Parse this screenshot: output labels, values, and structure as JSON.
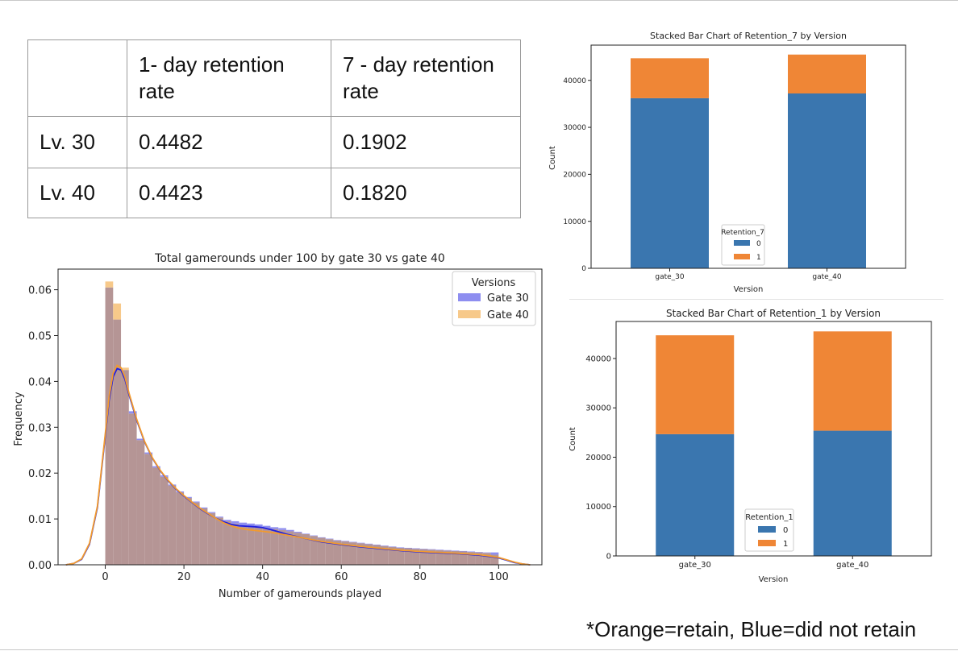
{
  "table": {
    "header": [
      "",
      "1- day retention rate",
      "7 - day retention rate"
    ],
    "rows": [
      [
        "Lv. 30",
        "0.4482",
        "0.1902"
      ],
      [
        "Lv. 40",
        "0.4423",
        "0.1820"
      ]
    ]
  },
  "note": "*Orange=retain, Blue=did not retain",
  "colors": {
    "blue_bar": "#3a76af",
    "orange_bar": "#ef8636",
    "hist_blue": "#8e8ef0",
    "hist_orange": "#f7c98a",
    "hist_overlap": "#b59595",
    "kde_blue": "#1f1fe0",
    "kde_orange": "#f29a2e"
  },
  "chart_data": [
    {
      "type": "histogram",
      "title": "Total gamerounds under 100 by gate 30 vs gate 40",
      "xlabel": "Number of gamerounds played",
      "ylabel": "Frequency",
      "xlim": [
        -12,
        111
      ],
      "ylim": [
        0,
        0.0645
      ],
      "xticks": [
        0,
        20,
        40,
        60,
        80,
        100
      ],
      "yticks": [
        0.0,
        0.01,
        0.02,
        0.03,
        0.04,
        0.05,
        0.06
      ],
      "legend": {
        "title": "Versions",
        "position": "top-right",
        "entries": [
          "Gate 30",
          "Gate 40"
        ]
      },
      "bin_edges": [
        0,
        2,
        4,
        6,
        8,
        10,
        12,
        14,
        16,
        18,
        20,
        22,
        24,
        26,
        28,
        30,
        32,
        34,
        36,
        38,
        40,
        42,
        44,
        46,
        48,
        50,
        52,
        54,
        56,
        58,
        60,
        62,
        64,
        66,
        68,
        70,
        72,
        74,
        76,
        78,
        80,
        82,
        84,
        86,
        88,
        90,
        92,
        94,
        96,
        98,
        100
      ],
      "series": [
        {
          "name": "Gate 30",
          "values": [
            0.0605,
            0.0535,
            0.0425,
            0.0335,
            0.0275,
            0.0245,
            0.0215,
            0.0195,
            0.0175,
            0.016,
            0.0148,
            0.0138,
            0.0125,
            0.0115,
            0.0105,
            0.0098,
            0.0095,
            0.0092,
            0.009,
            0.0088,
            0.0085,
            0.0082,
            0.008,
            0.0076,
            0.0072,
            0.0068,
            0.0064,
            0.006,
            0.0057,
            0.0054,
            0.0052,
            0.005,
            0.0048,
            0.0046,
            0.0044,
            0.0042,
            0.004,
            0.0038,
            0.0037,
            0.0036,
            0.0035,
            0.0034,
            0.0033,
            0.0032,
            0.0031,
            0.003,
            0.0029,
            0.0028,
            0.0027,
            0.0027
          ]
        },
        {
          "name": "Gate 40",
          "values": [
            0.0618,
            0.057,
            0.043,
            0.033,
            0.0272,
            0.0242,
            0.0212,
            0.0192,
            0.0173,
            0.0158,
            0.0146,
            0.0136,
            0.0123,
            0.0113,
            0.0103,
            0.0095,
            0.009,
            0.0086,
            0.0084,
            0.0082,
            0.008,
            0.0078,
            0.0076,
            0.0073,
            0.007,
            0.0067,
            0.0063,
            0.0059,
            0.0056,
            0.0053,
            0.0051,
            0.0049,
            0.0047,
            0.0045,
            0.0043,
            0.0041,
            0.0039,
            0.0037,
            0.0036,
            0.0035,
            0.0034,
            0.0033,
            0.0032,
            0.0031,
            0.003,
            0.0029,
            0.0028,
            0.0027,
            0.0026,
            0.0022
          ]
        }
      ],
      "kde": {
        "x": [
          -10,
          -8,
          -6,
          -4,
          -2,
          0,
          1,
          2,
          3,
          4,
          5,
          6,
          8,
          10,
          12,
          14,
          16,
          18,
          20,
          22,
          24,
          26,
          28,
          30,
          32,
          34,
          36,
          38,
          40,
          42,
          44,
          46,
          48,
          50,
          55,
          60,
          65,
          70,
          75,
          80,
          85,
          90,
          95,
          98,
          100,
          102,
          104,
          106,
          108
        ],
        "gate30": [
          0,
          0.0003,
          0.0012,
          0.0045,
          0.0125,
          0.028,
          0.036,
          0.041,
          0.0428,
          0.0425,
          0.0405,
          0.0372,
          0.0315,
          0.0268,
          0.0232,
          0.0205,
          0.0183,
          0.0165,
          0.015,
          0.0136,
          0.0123,
          0.0112,
          0.0102,
          0.0094,
          0.0088,
          0.0085,
          0.0084,
          0.0083,
          0.0081,
          0.0077,
          0.0072,
          0.0067,
          0.0063,
          0.0059,
          0.005,
          0.0044,
          0.0039,
          0.0035,
          0.0031,
          0.0028,
          0.0026,
          0.0024,
          0.0021,
          0.0018,
          0.0015,
          0.001,
          0.0005,
          0.0002,
          0
        ],
        "gate40": [
          0,
          0.0003,
          0.0013,
          0.0047,
          0.0128,
          0.0285,
          0.0368,
          0.0418,
          0.0435,
          0.043,
          0.041,
          0.0376,
          0.0317,
          0.0269,
          0.0233,
          0.0206,
          0.0184,
          0.0166,
          0.0151,
          0.0137,
          0.0124,
          0.0113,
          0.0102,
          0.0092,
          0.0085,
          0.008,
          0.0077,
          0.0075,
          0.0073,
          0.0071,
          0.0068,
          0.0065,
          0.0062,
          0.0059,
          0.0051,
          0.0045,
          0.004,
          0.0036,
          0.0032,
          0.0029,
          0.0027,
          0.0025,
          0.0022,
          0.0019,
          0.0016,
          0.0011,
          0.0006,
          0.0002,
          0
        ]
      }
    },
    {
      "type": "bar",
      "stacked": true,
      "title": "Stacked Bar Chart of Retention_7 by Version",
      "xlabel": "Version",
      "ylabel": "Count",
      "ylim": [
        0,
        47500
      ],
      "yticks": [
        0,
        10000,
        20000,
        30000,
        40000
      ],
      "categories": [
        "gate_30",
        "gate_40"
      ],
      "legend": {
        "title": "Retention_7",
        "position": "lower center"
      },
      "series": [
        {
          "name": "0",
          "values": [
            36198,
            37210
          ]
        },
        {
          "name": "1",
          "values": [
            8502,
            8279
          ]
        }
      ]
    },
    {
      "type": "bar",
      "stacked": true,
      "title": "Stacked Bar Chart of Retention_1 by Version",
      "xlabel": "Version",
      "ylabel": "Count",
      "ylim": [
        0,
        47500
      ],
      "yticks": [
        0,
        10000,
        20000,
        30000,
        40000
      ],
      "categories": [
        "gate_30",
        "gate_40"
      ],
      "legend": {
        "title": "Retention_1",
        "position": "lower center"
      },
      "series": [
        {
          "name": "0",
          "values": [
            24666,
            25370
          ]
        },
        {
          "name": "1",
          "values": [
            20034,
            20119
          ]
        }
      ]
    }
  ]
}
